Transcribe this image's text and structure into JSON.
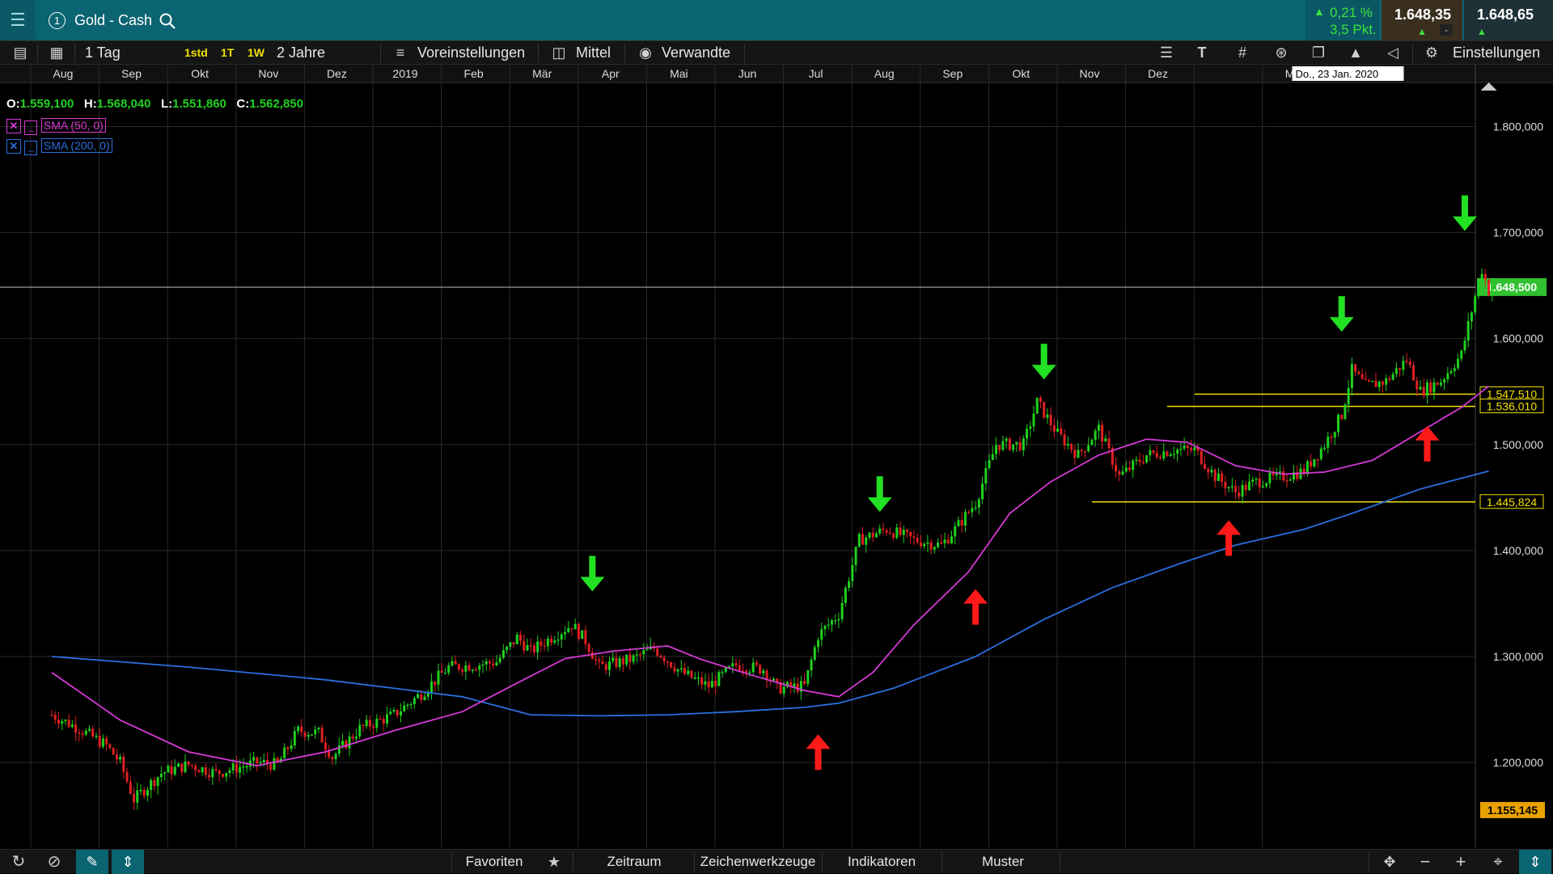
{
  "window": {
    "instrument": "Gold - Cash",
    "instrument_number": "1"
  },
  "quote": {
    "change_pct": "0,21 %",
    "change_pts": "3,5 Pkt.",
    "bid": "1.648,35",
    "ask": "1.648,65",
    "minus": "-"
  },
  "toolbar": {
    "period": "1 Tag",
    "btn_1std": "1std",
    "btn_1t": "1T",
    "btn_1w": "1W",
    "range": "2 Jahre",
    "presets": "Voreinstellungen",
    "indicator_mode": "Mittel",
    "related": "Verwandte",
    "text_tool": "T",
    "settings": "Einstellungen"
  },
  "ohlc": {
    "o_label": "O:",
    "o": "1.559,100",
    "h_label": "H:",
    "h": "1.568,040",
    "l_label": "L:",
    "l": "1.551,860",
    "c_label": "C:",
    "c": "1.562,850"
  },
  "indicators": [
    {
      "label": "SMA (50, 0)",
      "color": "#d63ad6"
    },
    {
      "label": "SMA (200, 0)",
      "color": "#2a6fe0"
    }
  ],
  "bottombar": {
    "favorites": "Favoriten",
    "timeframe": "Zeitraum",
    "drawing_tools": "Zeichenwerkzeuge",
    "indicators": "Indikatoren",
    "patterns": "Muster"
  },
  "colors": {
    "up": "#20d020",
    "down": "#e02020",
    "sma50": "#d63ad6",
    "sma200": "#2a6fe0",
    "level": "#f0e000",
    "price_tag": "#30c030",
    "low_tag": "#e8a200"
  },
  "chart_data": {
    "type": "candlestick",
    "x_ticks": [
      "Aug",
      "Sep",
      "Okt",
      "Nov",
      "Dez",
      "2019",
      "Feb",
      "Mär",
      "Apr",
      "Mai",
      "Jun",
      "Jul",
      "Aug",
      "Sep",
      "Okt",
      "Nov",
      "Dez",
      "",
      "Mär"
    ],
    "crosshair_date": "Do., 23 Jan. 2020",
    "y_ticks": [
      {
        "v": 1800,
        "label": "1.800,000"
      },
      {
        "v": 1700,
        "label": "1.700,000"
      },
      {
        "v": 1600,
        "label": "1.600,000"
      },
      {
        "v": 1500,
        "label": "1.500,000"
      },
      {
        "v": 1400,
        "label": "1.400,000"
      },
      {
        "v": 1300,
        "label": "1.300,000"
      },
      {
        "v": 1200,
        "label": "1.200,000"
      }
    ],
    "ylim": [
      1120,
      1840
    ],
    "price_line": {
      "v": 1648.5,
      "label": "1.648,500"
    },
    "levels": [
      {
        "v": 1547.51,
        "label": "1.547,510",
        "from_month": 16.7
      },
      {
        "v": 1536.01,
        "label": "1.536,010",
        "from_month": 16.3
      },
      {
        "v": 1445.824,
        "label": "1.445,824",
        "from_month": 15.2
      }
    ],
    "low_tag": {
      "v": 1155.145,
      "label": "1.155,145"
    },
    "price_path": [
      [
        0.0,
        1245
      ],
      [
        0.4,
        1232
      ],
      [
        0.8,
        1216
      ],
      [
        1.0,
        1200
      ],
      [
        1.2,
        1165
      ],
      [
        1.6,
        1190
      ],
      [
        2.0,
        1198
      ],
      [
        2.4,
        1190
      ],
      [
        3.0,
        1200
      ],
      [
        3.3,
        1198
      ],
      [
        3.6,
        1230
      ],
      [
        3.9,
        1228
      ],
      [
        4.1,
        1205
      ],
      [
        4.5,
        1232
      ],
      [
        5.0,
        1245
      ],
      [
        5.4,
        1265
      ],
      [
        5.8,
        1290
      ],
      [
        6.2,
        1292
      ],
      [
        6.5,
        1295
      ],
      [
        6.8,
        1318
      ],
      [
        7.0,
        1305
      ],
      [
        7.3,
        1318
      ],
      [
        7.6,
        1330
      ],
      [
        7.8,
        1315
      ],
      [
        8.0,
        1290
      ],
      [
        8.5,
        1298
      ],
      [
        8.8,
        1308
      ],
      [
        9.2,
        1285
      ],
      [
        9.6,
        1272
      ],
      [
        10.0,
        1292
      ],
      [
        10.4,
        1288
      ],
      [
        10.6,
        1270
      ],
      [
        11.0,
        1272
      ],
      [
        11.2,
        1320
      ],
      [
        11.5,
        1340
      ],
      [
        11.8,
        1410
      ],
      [
        12.2,
        1420
      ],
      [
        12.6,
        1410
      ],
      [
        13.0,
        1405
      ],
      [
        13.2,
        1420
      ],
      [
        13.5,
        1445
      ],
      [
        13.8,
        1500
      ],
      [
        14.2,
        1500
      ],
      [
        14.4,
        1540
      ],
      [
        14.7,
        1510
      ],
      [
        15.0,
        1490
      ],
      [
        15.3,
        1515
      ],
      [
        15.6,
        1470
      ],
      [
        16.0,
        1490
      ],
      [
        16.4,
        1495
      ],
      [
        16.7,
        1495
      ],
      [
        17.0,
        1470
      ],
      [
        17.3,
        1455
      ],
      [
        17.6,
        1465
      ],
      [
        18.0,
        1470
      ],
      [
        18.3,
        1475
      ],
      [
        18.6,
        1500
      ],
      [
        18.85,
        1528
      ],
      [
        19.0,
        1570
      ],
      [
        19.2,
        1555
      ],
      [
        19.5,
        1560
      ],
      [
        19.8,
        1580
      ],
      [
        20.0,
        1550
      ],
      [
        20.3,
        1560
      ],
      [
        20.6,
        1585
      ],
      [
        20.8,
        1640
      ],
      [
        20.9,
        1665
      ],
      [
        21.0,
        1645
      ],
      [
        21.1,
        1652
      ]
    ],
    "sma50_path": [
      [
        0.0,
        1285
      ],
      [
        1.0,
        1240
      ],
      [
        2.0,
        1210
      ],
      [
        3.0,
        1197
      ],
      [
        4.0,
        1210
      ],
      [
        5.0,
        1230
      ],
      [
        6.0,
        1248
      ],
      [
        6.8,
        1275
      ],
      [
        7.5,
        1298
      ],
      [
        8.2,
        1305
      ],
      [
        9.0,
        1310
      ],
      [
        9.5,
        1297
      ],
      [
        10.2,
        1283
      ],
      [
        11.0,
        1268
      ],
      [
        11.5,
        1262
      ],
      [
        12.0,
        1285
      ],
      [
        12.6,
        1330
      ],
      [
        13.4,
        1380
      ],
      [
        14.0,
        1435
      ],
      [
        14.6,
        1465
      ],
      [
        15.3,
        1490
      ],
      [
        16.0,
        1505
      ],
      [
        16.6,
        1502
      ],
      [
        17.3,
        1480
      ],
      [
        18.0,
        1472
      ],
      [
        18.6,
        1474
      ],
      [
        19.3,
        1485
      ],
      [
        20.0,
        1512
      ],
      [
        20.6,
        1535
      ],
      [
        21.0,
        1555
      ]
    ],
    "sma200_path": [
      [
        0.0,
        1300
      ],
      [
        2.0,
        1290
      ],
      [
        4.0,
        1278
      ],
      [
        6.0,
        1262
      ],
      [
        7.0,
        1245
      ],
      [
        8.0,
        1244
      ],
      [
        9.0,
        1245
      ],
      [
        10.0,
        1248
      ],
      [
        11.0,
        1252
      ],
      [
        11.5,
        1256
      ],
      [
        12.3,
        1270
      ],
      [
        13.5,
        1300
      ],
      [
        14.5,
        1335
      ],
      [
        15.5,
        1365
      ],
      [
        16.5,
        1388
      ],
      [
        17.3,
        1405
      ],
      [
        18.3,
        1420
      ],
      [
        19.0,
        1435
      ],
      [
        20.0,
        1458
      ],
      [
        21.0,
        1475
      ]
    ],
    "signals_down": [
      [
        7.9,
        1395
      ],
      [
        12.1,
        1470
      ],
      [
        14.5,
        1595
      ],
      [
        18.85,
        1640
      ],
      [
        20.65,
        1735
      ]
    ],
    "signals_up": [
      [
        11.2,
        1193
      ],
      [
        13.5,
        1330
      ],
      [
        17.2,
        1395
      ],
      [
        20.1,
        1484
      ]
    ]
  }
}
